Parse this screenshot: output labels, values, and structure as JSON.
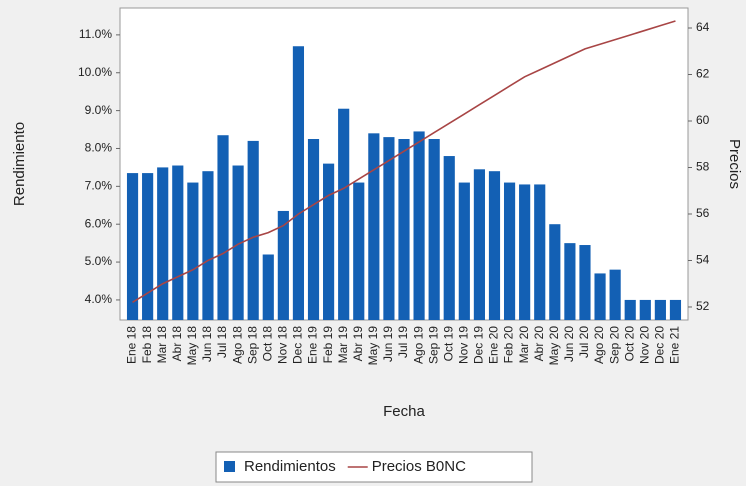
{
  "chart_data": {
    "type": "bar_line",
    "xlabel": "Fecha",
    "ylabel": "Rendimiento",
    "y2label": "Precios",
    "categories": [
      "Ene 18",
      "Feb 18",
      "Mar 18",
      "Abr 18",
      "May 18",
      "Jun 18",
      "Jul 18",
      "Ago 18",
      "Sep 18",
      "Oct 18",
      "Nov 18",
      "Dec 18",
      "Ene 19",
      "Feb 19",
      "Mar 19",
      "Abr 19",
      "May 19",
      "Jun 19",
      "Jul 19",
      "Ago 19",
      "Sep 19",
      "Oct 19",
      "Nov 19",
      "Dec 19",
      "Ene 20",
      "Feb 20",
      "Mar 20",
      "Abr 20",
      "May 20",
      "Jun 20",
      "Jul 20",
      "Ago 20",
      "Sep 20",
      "Oct 20",
      "Nov 20",
      "Dec 20",
      "Ene 21"
    ],
    "series": [
      {
        "name": "Rendimientos",
        "type": "bar",
        "color": "#1360b4",
        "values": [
          7.35,
          7.35,
          7.5,
          7.55,
          7.1,
          7.4,
          8.35,
          7.55,
          8.2,
          5.2,
          6.35,
          10.7,
          8.25,
          7.6,
          9.05,
          7.1,
          8.4,
          8.3,
          8.25,
          8.45,
          8.25,
          7.8,
          7.1,
          7.45,
          7.4,
          7.1,
          7.05,
          7.05,
          6.0,
          5.5,
          5.45,
          4.7,
          4.8,
          4.0,
          4.0,
          4.0,
          4.0
        ]
      },
      {
        "name": "Precios B0NC",
        "type": "line",
        "axis": "y2",
        "color": "#a84545",
        "values": [
          52.2,
          52.6,
          53.0,
          53.3,
          53.6,
          54.0,
          54.3,
          54.7,
          55.0,
          55.2,
          55.5,
          56.0,
          56.4,
          56.8,
          57.1,
          57.5,
          57.9,
          58.3,
          58.7,
          59.1,
          59.5,
          59.9,
          60.3,
          60.7,
          61.1,
          61.5,
          61.9,
          62.2,
          62.5,
          62.8,
          63.1,
          63.3,
          63.5,
          63.7,
          63.9,
          64.1,
          64.3
        ]
      }
    ],
    "ylim": [
      3.47,
      11.71
    ],
    "yticks": [
      {
        "value": 4,
        "label": "4.0%"
      },
      {
        "value": 5,
        "label": "5.0%"
      },
      {
        "value": 6,
        "label": "6.0%"
      },
      {
        "value": 7,
        "label": "7.0%"
      },
      {
        "value": 8,
        "label": "8.0%"
      },
      {
        "value": 9,
        "label": "9.0%"
      },
      {
        "value": 10,
        "label": "10.0%"
      },
      {
        "value": 11,
        "label": "11.0%"
      }
    ],
    "y2lim": [
      51.44,
      64.86
    ],
    "y2ticks": [
      52,
      54,
      56,
      58,
      60,
      62,
      64
    ],
    "legend": "bottom"
  }
}
